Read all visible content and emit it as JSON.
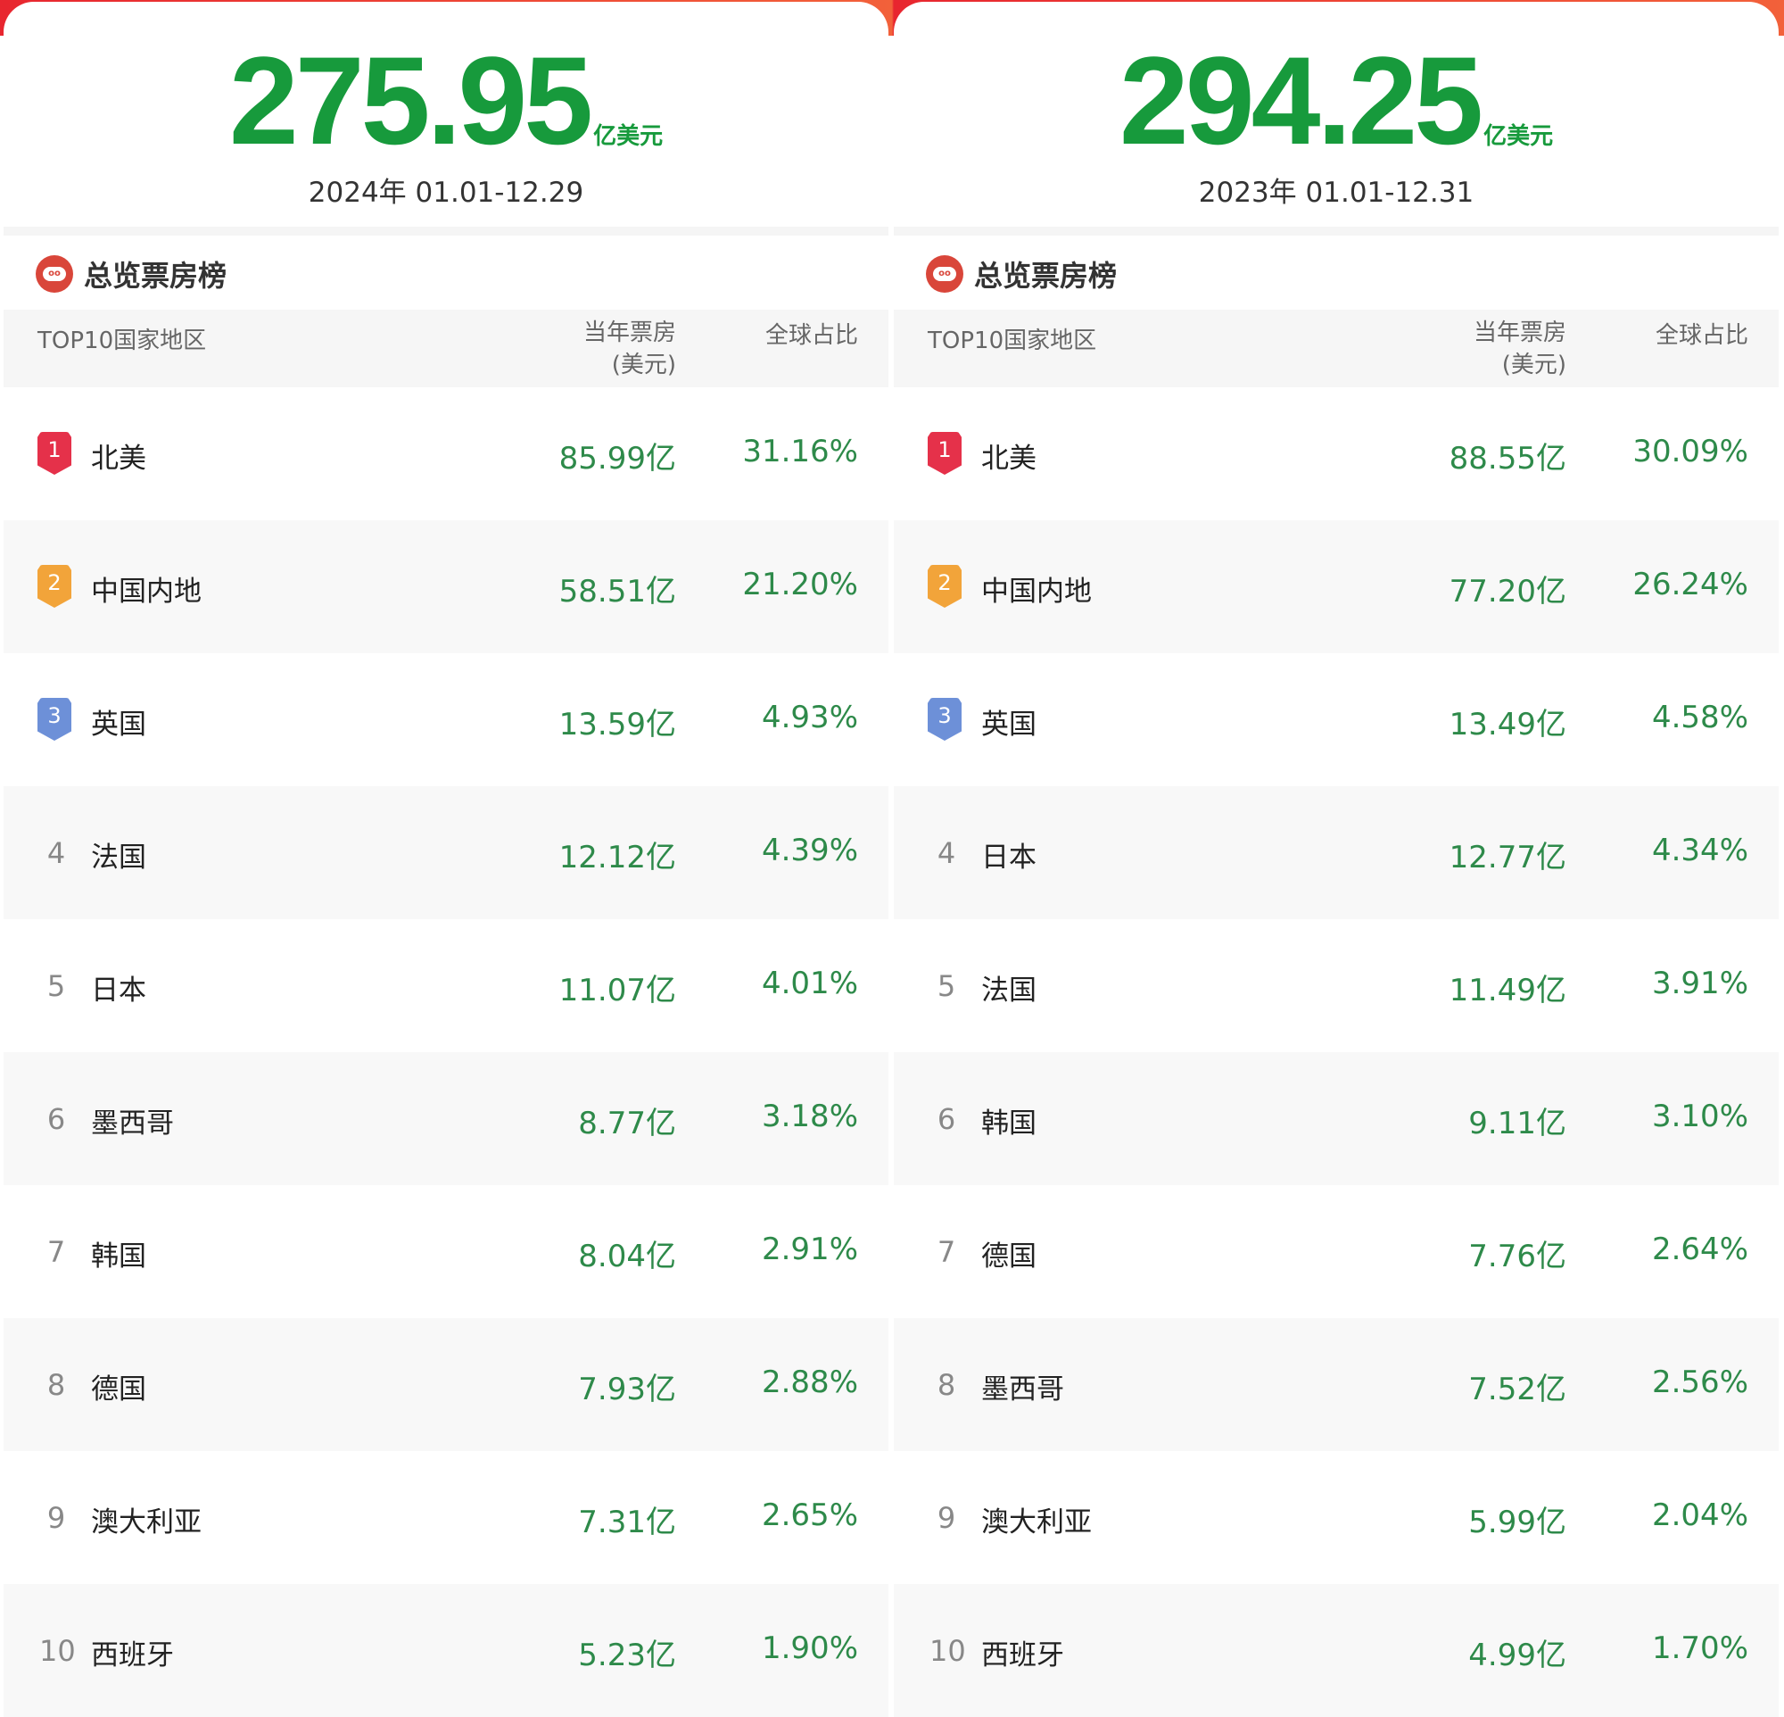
{
  "colors": {
    "accent_green": "#179a3c",
    "rank1": "#e5314a",
    "rank2": "#f2a43a",
    "rank3": "#6d90d8"
  },
  "panels": [
    {
      "total": "275.95",
      "unit": "亿美元",
      "date": "2024年  01.01-12.29",
      "title": "总览票房榜",
      "headers": {
        "region": "TOP10国家地区",
        "box": "当年票房",
        "box_unit": "(美元)",
        "share": "全球占比"
      },
      "rows": [
        {
          "rank": "1",
          "name": "北美",
          "box": "85.99亿",
          "share": "31.16%"
        },
        {
          "rank": "2",
          "name": "中国内地",
          "box": "58.51亿",
          "share": "21.20%"
        },
        {
          "rank": "3",
          "name": "英国",
          "box": "13.59亿",
          "share": "4.93%"
        },
        {
          "rank": "4",
          "name": "法国",
          "box": "12.12亿",
          "share": "4.39%"
        },
        {
          "rank": "5",
          "name": "日本",
          "box": "11.07亿",
          "share": "4.01%"
        },
        {
          "rank": "6",
          "name": "墨西哥",
          "box": "8.77亿",
          "share": "3.18%"
        },
        {
          "rank": "7",
          "name": "韩国",
          "box": "8.04亿",
          "share": "2.91%"
        },
        {
          "rank": "8",
          "name": "德国",
          "box": "7.93亿",
          "share": "2.88%"
        },
        {
          "rank": "9",
          "name": "澳大利亚",
          "box": "7.31亿",
          "share": "2.65%"
        },
        {
          "rank": "10",
          "name": "西班牙",
          "box": "5.23亿",
          "share": "1.90%"
        }
      ]
    },
    {
      "total": "294.25",
      "unit": "亿美元",
      "date": "2023年  01.01-12.31",
      "title": "总览票房榜",
      "headers": {
        "region": "TOP10国家地区",
        "box": "当年票房",
        "box_unit": "(美元)",
        "share": "全球占比"
      },
      "rows": [
        {
          "rank": "1",
          "name": "北美",
          "box": "88.55亿",
          "share": "30.09%"
        },
        {
          "rank": "2",
          "name": "中国内地",
          "box": "77.20亿",
          "share": "26.24%"
        },
        {
          "rank": "3",
          "name": "英国",
          "box": "13.49亿",
          "share": "4.58%"
        },
        {
          "rank": "4",
          "name": "日本",
          "box": "12.77亿",
          "share": "4.34%"
        },
        {
          "rank": "5",
          "name": "法国",
          "box": "11.49亿",
          "share": "3.91%"
        },
        {
          "rank": "6",
          "name": "韩国",
          "box": "9.11亿",
          "share": "3.10%"
        },
        {
          "rank": "7",
          "name": "德国",
          "box": "7.76亿",
          "share": "2.64%"
        },
        {
          "rank": "8",
          "name": "墨西哥",
          "box": "7.52亿",
          "share": "2.56%"
        },
        {
          "rank": "9",
          "name": "澳大利亚",
          "box": "5.99亿",
          "share": "2.04%"
        },
        {
          "rank": "10",
          "name": "西班牙",
          "box": "4.99亿",
          "share": "1.70%"
        }
      ]
    }
  ]
}
